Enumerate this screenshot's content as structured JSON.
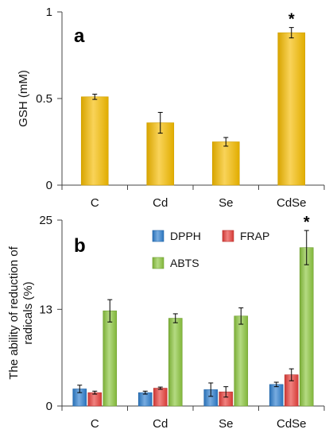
{
  "chart_data": [
    {
      "type": "bar",
      "panel_label": "a",
      "categories": [
        "C",
        "Cd",
        "Se",
        "CdSe"
      ],
      "values": [
        0.51,
        0.36,
        0.25,
        0.88
      ],
      "errors": [
        0.015,
        0.06,
        0.025,
        0.03
      ],
      "ylabel": "GSH (mM)",
      "ylim": [
        0,
        1
      ],
      "yticks": [
        "0",
        "0.5",
        "1"
      ],
      "ytick_values": [
        0,
        0.5,
        1
      ],
      "bar_color": "#f5bc00",
      "significance": [
        "",
        "",
        "",
        "*"
      ],
      "grid": false
    },
    {
      "type": "bar",
      "panel_label": "b",
      "categories": [
        "C",
        "Cd",
        "Se",
        "CdSe"
      ],
      "ylabel": "The ability of reduction of radicals (%)",
      "ylim": [
        0,
        25
      ],
      "yticks": [
        "0",
        "13",
        "25"
      ],
      "ytick_values": [
        0,
        13,
        25
      ],
      "grid": false,
      "legend_position": "top-center",
      "series": [
        {
          "name": "DPPH",
          "color": "#2f7fcf",
          "values": [
            2.3,
            1.8,
            2.2,
            2.9
          ],
          "errors": [
            0.5,
            0.2,
            0.9,
            0.3
          ]
        },
        {
          "name": "FRAP",
          "color": "#e8403c",
          "values": [
            1.8,
            2.4,
            1.9,
            4.2
          ],
          "errors": [
            0.2,
            0.15,
            0.7,
            0.8
          ]
        },
        {
          "name": "ABTS",
          "color": "#8cc63f",
          "values": [
            12.8,
            11.8,
            12.1,
            21.3
          ],
          "errors": [
            1.5,
            0.6,
            1.1,
            2.3
          ]
        }
      ],
      "significance": [
        "",
        "",
        "",
        "*"
      ]
    }
  ]
}
